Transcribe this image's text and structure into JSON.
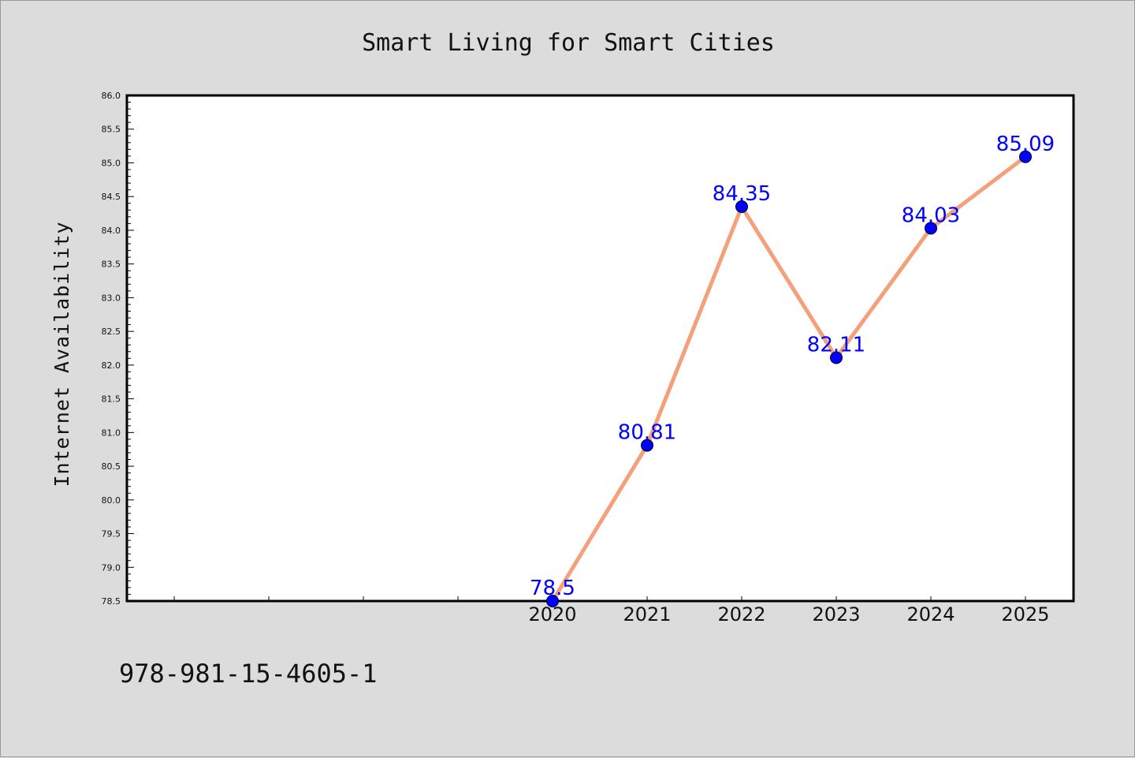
{
  "chart_data": {
    "type": "line",
    "title": "Smart Living for Smart Cities",
    "xlabel": "",
    "ylabel": "Internet Availability",
    "categories": [
      "2020",
      "2021",
      "2022",
      "2023",
      "2024",
      "2025"
    ],
    "series": [
      {
        "values": [
          78.5,
          80.81,
          84.35,
          82.11,
          84.03,
          85.09
        ],
        "data_labels": [
          "78.5",
          "80.81",
          "84.35",
          "82.11",
          "84.03",
          "85.09"
        ]
      }
    ],
    "ylim": [
      78.5,
      86.0
    ],
    "y_ticks": [
      "78.5",
      "79.0",
      "79.5",
      "80.0",
      "80.5",
      "81.0",
      "81.5",
      "82.0",
      "82.5",
      "83.0",
      "83.5",
      "84.0",
      "84.5",
      "85.0",
      "85.5",
      "86.0"
    ],
    "grid": false,
    "colors": {
      "line": "#f4a07a",
      "marker": "#0000ff",
      "label": "#0000ff"
    }
  },
  "footer": {
    "text": "978-981-15-4605-1"
  }
}
